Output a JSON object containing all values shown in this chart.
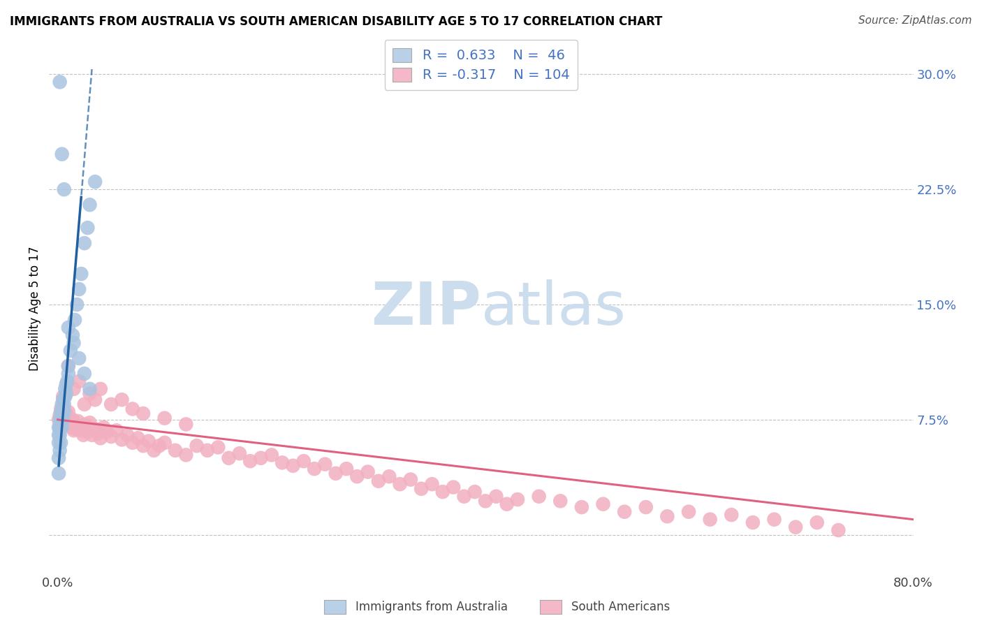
{
  "title": "IMMIGRANTS FROM AUSTRALIA VS SOUTH AMERICAN DISABILITY AGE 5 TO 17 CORRELATION CHART",
  "source": "Source: ZipAtlas.com",
  "ylabel": "Disability Age 5 to 17",
  "xlim": [
    -0.008,
    0.8
  ],
  "ylim": [
    -0.025,
    0.32
  ],
  "yticks": [
    0.0,
    0.075,
    0.15,
    0.225,
    0.3
  ],
  "ytick_labels": [
    "",
    "7.5%",
    "15.0%",
    "22.5%",
    "30.0%"
  ],
  "xticks": [
    0.0,
    0.8
  ],
  "xtick_labels": [
    "0.0%",
    "80.0%"
  ],
  "blue_dot_color": "#a8c4e0",
  "pink_dot_color": "#f2afc0",
  "line_blue_color": "#2060a0",
  "line_pink_color": "#e06080",
  "legend_blue_fill": "#b8d0e8",
  "legend_pink_fill": "#f4b8c8",
  "watermark_color": "#ccdded",
  "tick_color": "#4472c4",
  "title_fontsize": 12,
  "source_fontsize": 11,
  "tick_fontsize": 13,
  "ylabel_fontsize": 12,
  "aus_x": [
    0.001,
    0.001,
    0.001,
    0.001,
    0.001,
    0.002,
    0.002,
    0.002,
    0.002,
    0.003,
    0.003,
    0.003,
    0.003,
    0.004,
    0.004,
    0.004,
    0.005,
    0.005,
    0.005,
    0.006,
    0.006,
    0.007,
    0.007,
    0.008,
    0.008,
    0.009,
    0.01,
    0.01,
    0.012,
    0.014,
    0.016,
    0.018,
    0.02,
    0.022,
    0.025,
    0.028,
    0.03,
    0.035,
    0.002,
    0.004,
    0.006,
    0.01,
    0.015,
    0.02,
    0.025,
    0.03
  ],
  "aus_y": [
    0.04,
    0.05,
    0.06,
    0.065,
    0.07,
    0.055,
    0.065,
    0.07,
    0.075,
    0.06,
    0.07,
    0.075,
    0.08,
    0.07,
    0.08,
    0.085,
    0.075,
    0.082,
    0.088,
    0.08,
    0.085,
    0.09,
    0.095,
    0.092,
    0.098,
    0.1,
    0.105,
    0.11,
    0.12,
    0.13,
    0.14,
    0.15,
    0.16,
    0.17,
    0.19,
    0.2,
    0.215,
    0.23,
    0.295,
    0.248,
    0.225,
    0.135,
    0.125,
    0.115,
    0.105,
    0.095
  ],
  "sa_x": [
    0.001,
    0.002,
    0.003,
    0.004,
    0.005,
    0.006,
    0.007,
    0.008,
    0.009,
    0.01,
    0.011,
    0.012,
    0.013,
    0.014,
    0.015,
    0.016,
    0.017,
    0.018,
    0.019,
    0.02,
    0.022,
    0.024,
    0.026,
    0.028,
    0.03,
    0.032,
    0.035,
    0.038,
    0.04,
    0.043,
    0.046,
    0.05,
    0.055,
    0.06,
    0.065,
    0.07,
    0.075,
    0.08,
    0.085,
    0.09,
    0.095,
    0.1,
    0.11,
    0.12,
    0.13,
    0.14,
    0.15,
    0.16,
    0.17,
    0.18,
    0.19,
    0.2,
    0.21,
    0.22,
    0.23,
    0.24,
    0.25,
    0.26,
    0.27,
    0.28,
    0.29,
    0.3,
    0.31,
    0.32,
    0.33,
    0.34,
    0.35,
    0.36,
    0.37,
    0.38,
    0.39,
    0.4,
    0.41,
    0.42,
    0.43,
    0.45,
    0.47,
    0.49,
    0.51,
    0.53,
    0.55,
    0.57,
    0.59,
    0.61,
    0.63,
    0.65,
    0.67,
    0.69,
    0.71,
    0.73,
    0.005,
    0.01,
    0.015,
    0.02,
    0.025,
    0.03,
    0.035,
    0.04,
    0.05,
    0.06,
    0.07,
    0.08,
    0.1,
    0.12
  ],
  "sa_y": [
    0.075,
    0.078,
    0.082,
    0.08,
    0.083,
    0.072,
    0.077,
    0.079,
    0.074,
    0.08,
    0.076,
    0.073,
    0.07,
    0.075,
    0.068,
    0.072,
    0.069,
    0.071,
    0.074,
    0.07,
    0.068,
    0.065,
    0.072,
    0.067,
    0.073,
    0.065,
    0.069,
    0.066,
    0.063,
    0.07,
    0.067,
    0.064,
    0.068,
    0.062,
    0.065,
    0.06,
    0.063,
    0.058,
    0.061,
    0.055,
    0.058,
    0.06,
    0.055,
    0.052,
    0.058,
    0.055,
    0.057,
    0.05,
    0.053,
    0.048,
    0.05,
    0.052,
    0.047,
    0.045,
    0.048,
    0.043,
    0.046,
    0.04,
    0.043,
    0.038,
    0.041,
    0.035,
    0.038,
    0.033,
    0.036,
    0.03,
    0.033,
    0.028,
    0.031,
    0.025,
    0.028,
    0.022,
    0.025,
    0.02,
    0.023,
    0.025,
    0.022,
    0.018,
    0.02,
    0.015,
    0.018,
    0.012,
    0.015,
    0.01,
    0.013,
    0.008,
    0.01,
    0.005,
    0.008,
    0.003,
    0.09,
    0.11,
    0.095,
    0.1,
    0.085,
    0.092,
    0.088,
    0.095,
    0.085,
    0.088,
    0.082,
    0.079,
    0.076,
    0.072
  ]
}
